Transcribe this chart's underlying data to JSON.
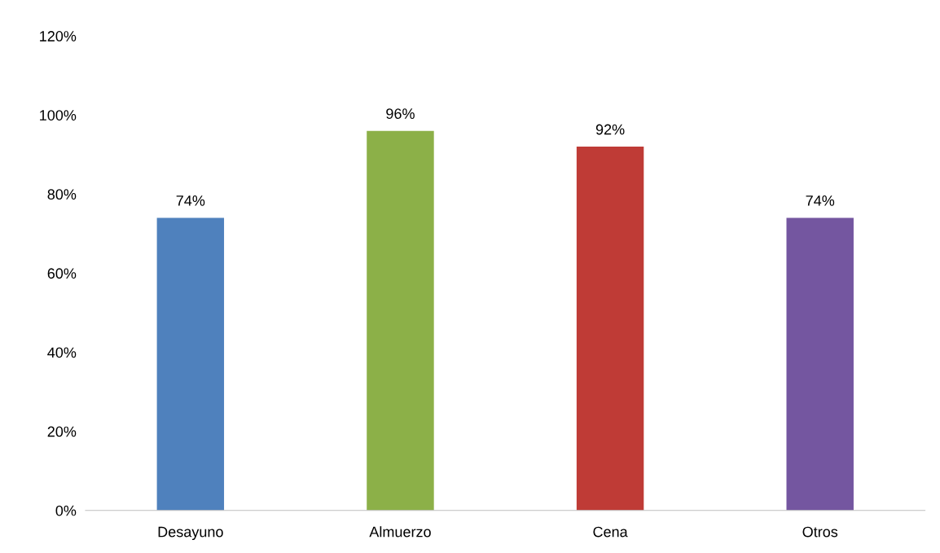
{
  "chart_data": {
    "type": "bar",
    "categories": [
      "Desayuno",
      "Almuerzo",
      "Cena",
      "Otros"
    ],
    "values": [
      74,
      96,
      92,
      74
    ],
    "colors": [
      "#4f81bd",
      "#8cb048",
      "#bf3b36",
      "#7456a0"
    ],
    "value_labels": [
      "74%",
      "96%",
      "92%",
      "74%"
    ],
    "ylim": [
      0,
      120
    ],
    "yticks": [
      {
        "value": 0,
        "label": "0%"
      },
      {
        "value": 20,
        "label": "20%"
      },
      {
        "value": 40,
        "label": "40%"
      },
      {
        "value": 60,
        "label": "60%"
      },
      {
        "value": 80,
        "label": "80%"
      },
      {
        "value": 100,
        "label": "100%"
      },
      {
        "value": 120,
        "label": "120%"
      }
    ],
    "grid": false,
    "legend": false
  }
}
